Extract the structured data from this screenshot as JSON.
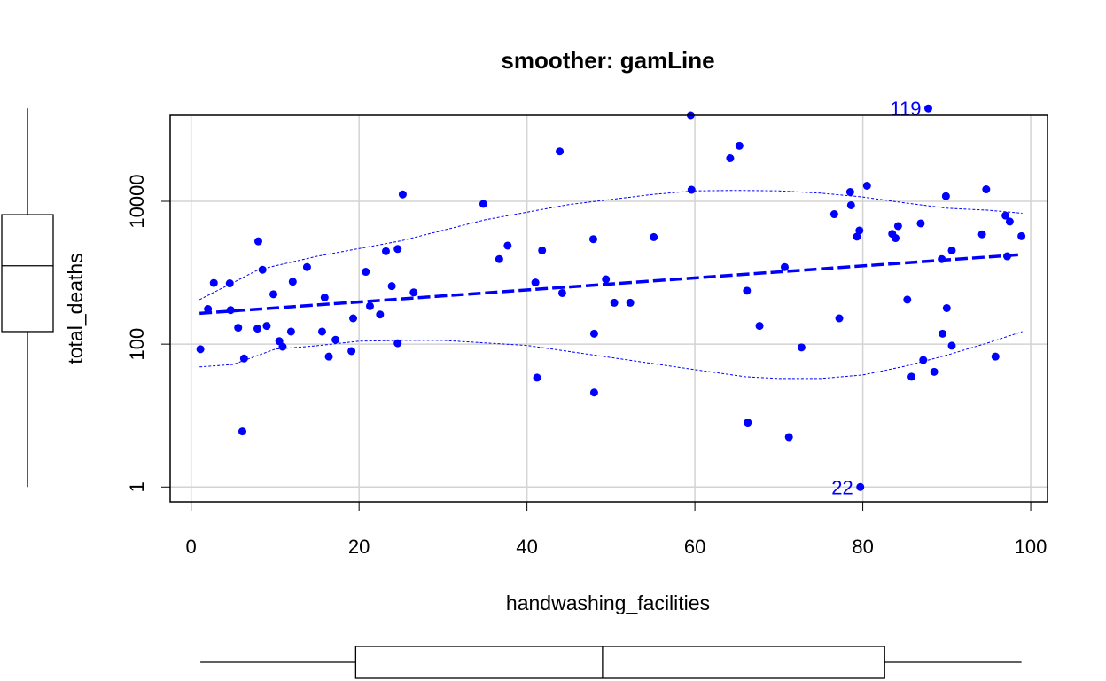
{
  "chart_data": {
    "type": "scatter",
    "title": "smoother: gamLine",
    "xlabel": "handwashing_facilities",
    "ylabel": "total_deaths",
    "xlim": [
      -2.5,
      102
    ],
    "ylog": true,
    "ylim": [
      0.62,
      160000
    ],
    "xticks": [
      0,
      20,
      40,
      60,
      80,
      100
    ],
    "xtick_labels": [
      "0",
      "20",
      "40",
      "60",
      "80",
      "100"
    ],
    "yticks": [
      1,
      100,
      10000
    ],
    "ytick_labels": [
      "1",
      "100",
      "10000"
    ],
    "grid": true,
    "colors": {
      "points": "#0000ff",
      "grid": "#d3d3d3",
      "axes": "#000000"
    },
    "points": [
      [
        1.1,
        85
      ],
      [
        2.0,
        310
      ],
      [
        2.7,
        720
      ],
      [
        4.6,
        710
      ],
      [
        4.7,
        300
      ],
      [
        5.6,
        170
      ],
      [
        6.1,
        6
      ],
      [
        6.3,
        63
      ],
      [
        7.9,
        165
      ],
      [
        8.0,
        2750
      ],
      [
        8.5,
        1100
      ],
      [
        9.0,
        180
      ],
      [
        9.8,
        500
      ],
      [
        10.5,
        110
      ],
      [
        10.9,
        92
      ],
      [
        11.9,
        150
      ],
      [
        12.1,
        750
      ],
      [
        13.8,
        1200
      ],
      [
        15.6,
        150
      ],
      [
        15.9,
        450
      ],
      [
        16.4,
        67
      ],
      [
        17.2,
        115
      ],
      [
        19.1,
        80
      ],
      [
        19.3,
        230
      ],
      [
        20.8,
        1030
      ],
      [
        21.3,
        340
      ],
      [
        22.5,
        260
      ],
      [
        23.2,
        2000
      ],
      [
        23.9,
        650
      ],
      [
        24.6,
        2150
      ],
      [
        24.6,
        103
      ],
      [
        25.2,
        12500
      ],
      [
        26.5,
        530
      ],
      [
        34.8,
        9200
      ],
      [
        36.7,
        1550
      ],
      [
        37.7,
        2400
      ],
      [
        41.0,
        730
      ],
      [
        41.2,
        34
      ],
      [
        41.8,
        2050
      ],
      [
        43.9,
        50000
      ],
      [
        44.2,
        520
      ],
      [
        47.9,
        2950
      ],
      [
        48.0,
        140
      ],
      [
        48.0,
        21
      ],
      [
        49.4,
        810
      ],
      [
        50.4,
        380
      ],
      [
        52.3,
        380
      ],
      [
        55.1,
        3150
      ],
      [
        59.5,
        160000
      ],
      [
        59.6,
        14500
      ],
      [
        64.2,
        40000
      ],
      [
        65.3,
        60000
      ],
      [
        66.2,
        560
      ],
      [
        66.3,
        8
      ],
      [
        67.7,
        180
      ],
      [
        70.7,
        1200
      ],
      [
        71.2,
        5
      ],
      [
        72.7,
        90
      ],
      [
        76.6,
        6600
      ],
      [
        77.2,
        230
      ],
      [
        78.5,
        13500
      ],
      [
        78.6,
        8800
      ],
      [
        79.3,
        3200
      ],
      [
        79.6,
        3900
      ],
      [
        79.7,
        1
      ],
      [
        80.5,
        16500
      ],
      [
        83.5,
        3500
      ],
      [
        83.9,
        3050
      ],
      [
        84.2,
        4500
      ],
      [
        85.3,
        420
      ],
      [
        85.8,
        35
      ],
      [
        86.9,
        4900
      ],
      [
        87.2,
        60
      ],
      [
        87.8,
        200000
      ],
      [
        88.5,
        41
      ],
      [
        89.4,
        1550
      ],
      [
        89.5,
        140
      ],
      [
        89.9,
        11800
      ],
      [
        90.0,
        320
      ],
      [
        90.6,
        2050
      ],
      [
        90.6,
        95
      ],
      [
        94.2,
        3450
      ],
      [
        94.7,
        14700
      ],
      [
        95.8,
        67
      ],
      [
        97.0,
        6300
      ],
      [
        97.2,
        1700
      ],
      [
        97.5,
        5200
      ],
      [
        98.9,
        3250
      ]
    ],
    "fit": {
      "x": [
        1,
        99
      ],
      "y": [
        270,
        1800
      ]
    },
    "band_upper": [
      [
        1,
        420
      ],
      [
        8,
        1100
      ],
      [
        15,
        1700
      ],
      [
        25,
        2800
      ],
      [
        35,
        5500
      ],
      [
        45,
        9000
      ],
      [
        55,
        12500
      ],
      [
        60,
        14000
      ],
      [
        65,
        14200
      ],
      [
        70,
        14000
      ],
      [
        75,
        13000
      ],
      [
        80,
        11500
      ],
      [
        85,
        9500
      ],
      [
        90,
        8000
      ],
      [
        95,
        7500
      ],
      [
        99,
        6800
      ]
    ],
    "band_lower": [
      [
        1,
        48
      ],
      [
        5,
        52
      ],
      [
        10,
        85
      ],
      [
        15,
        95
      ],
      [
        20,
        110
      ],
      [
        25,
        113
      ],
      [
        30,
        113
      ],
      [
        40,
        96
      ],
      [
        50,
        65
      ],
      [
        60,
        44
      ],
      [
        66,
        35
      ],
      [
        70,
        33
      ],
      [
        75,
        33
      ],
      [
        80,
        37
      ],
      [
        85,
        49
      ],
      [
        90,
        70
      ],
      [
        95,
        105
      ],
      [
        99,
        150
      ]
    ],
    "labeled_points": [
      {
        "label": "119",
        "x": 87.8,
        "y": 200000
      },
      {
        "label": "22",
        "x": 79.7,
        "y": 1
      }
    ],
    "marginal_boxplot_y": {
      "whisker_low": 1,
      "q1": 150,
      "median": 1250,
      "q3": 6500,
      "whisker_high": 200000
    },
    "marginal_boxplot_x": {
      "whisker_low": 1.1,
      "q1": 19.6,
      "median": 49.0,
      "q3": 82.6,
      "whisker_high": 98.9
    }
  }
}
